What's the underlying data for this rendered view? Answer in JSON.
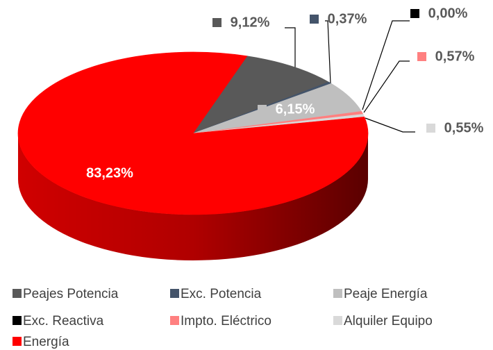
{
  "chart_data": {
    "type": "pie",
    "categories": [
      "Peajes Potencia",
      "Exc. Potencia",
      "Peaje Energía",
      "Exc. Reactiva",
      "Impto. Eléctrico",
      "Alquiler Equipo",
      "Energía"
    ],
    "values": [
      9.12,
      0.37,
      6.15,
      0.0,
      0.57,
      0.55,
      83.23
    ],
    "value_labels": [
      "9,12%",
      "0,37%",
      "6,15%",
      "0,00%",
      "0,57%",
      "0,55%",
      "83,23%"
    ],
    "colors": [
      "#595959",
      "#44546a",
      "#bfbfbf",
      "#000000",
      "#ff8080",
      "#d9d9d9",
      "#ff0000"
    ],
    "legend": "bottom"
  }
}
